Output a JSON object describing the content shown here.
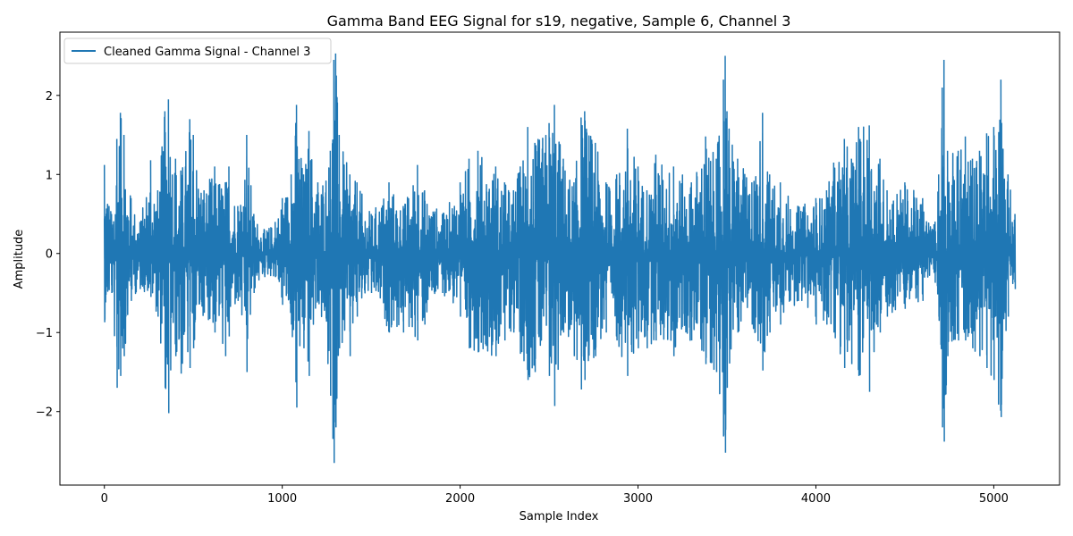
{
  "chart_data": {
    "type": "line",
    "title": "Gamma Band EEG Signal for s19, negative, Sample 6, Channel 3",
    "xlabel": "Sample Index",
    "ylabel": "Amplitude",
    "xlim": [
      -250,
      5370
    ],
    "ylim": [
      -2.93,
      2.8
    ],
    "xticks": [
      0,
      1000,
      2000,
      3000,
      4000,
      5000
    ],
    "xtick_labels": [
      "0",
      "1000",
      "2000",
      "3000",
      "4000",
      "5000"
    ],
    "yticks": [
      -2,
      -1,
      0,
      1,
      2
    ],
    "ytick_labels": [
      "−2",
      "−1",
      "0",
      "1",
      "2"
    ],
    "grid": false,
    "legend": {
      "placement": "top-left",
      "entries": [
        "Cleaned Gamma Signal - Channel 3"
      ]
    },
    "series": [
      {
        "name": "Cleaned Gamma Signal - Channel 3",
        "color": "#1f77b4",
        "length": 5120,
        "envelope": [
          [
            0,
            1.12,
            -0.87
          ],
          [
            40,
            0.5,
            -0.5
          ],
          [
            70,
            1.45,
            -1.7
          ],
          [
            90,
            1.78,
            -1.55
          ],
          [
            110,
            1.5,
            -1.3
          ],
          [
            150,
            0.7,
            -0.6
          ],
          [
            200,
            0.4,
            -0.45
          ],
          [
            260,
            1.18,
            -0.55
          ],
          [
            300,
            0.8,
            -0.8
          ],
          [
            340,
            1.8,
            -1.7
          ],
          [
            360,
            1.95,
            -2.02
          ],
          [
            400,
            1.2,
            -1.3
          ],
          [
            430,
            1.05,
            -1.52
          ],
          [
            480,
            1.7,
            -1.45
          ],
          [
            500,
            1.5,
            -1.2
          ],
          [
            560,
            0.8,
            -0.75
          ],
          [
            620,
            1.1,
            -1.0
          ],
          [
            680,
            0.9,
            -1.3
          ],
          [
            700,
            1.1,
            -1.05
          ],
          [
            750,
            0.6,
            -0.6
          ],
          [
            800,
            1.5,
            -1.5
          ],
          [
            840,
            0.5,
            -0.5
          ],
          [
            900,
            0.3,
            -0.3
          ],
          [
            960,
            0.4,
            -0.3
          ],
          [
            1000,
            0.7,
            -0.65
          ],
          [
            1050,
            1.0,
            -0.9
          ],
          [
            1080,
            1.88,
            -1.95
          ],
          [
            1120,
            1.0,
            -1.2
          ],
          [
            1150,
            1.55,
            -1.55
          ],
          [
            1200,
            0.9,
            -0.6
          ],
          [
            1270,
            1.3,
            -1.8
          ],
          [
            1290,
            2.45,
            -2.65
          ],
          [
            1300,
            2.53,
            -2.2
          ],
          [
            1320,
            1.5,
            -1.2
          ],
          [
            1380,
            1.0,
            -1.3
          ],
          [
            1420,
            0.9,
            -0.8
          ],
          [
            1500,
            0.5,
            -0.5
          ],
          [
            1600,
            0.9,
            -1.0
          ],
          [
            1680,
            0.6,
            -1.0
          ],
          [
            1760,
            1.12,
            -1.1
          ],
          [
            1800,
            0.8,
            -0.9
          ],
          [
            1900,
            0.5,
            -0.5
          ],
          [
            2000,
            0.9,
            -0.8
          ],
          [
            2050,
            1.2,
            -1.2
          ],
          [
            2100,
            1.3,
            -1.25
          ],
          [
            2200,
            1.1,
            -1.3
          ],
          [
            2250,
            0.9,
            -1.1
          ],
          [
            2300,
            0.8,
            -1.0
          ],
          [
            2380,
            1.6,
            -1.6
          ],
          [
            2420,
            1.4,
            -1.5
          ],
          [
            2500,
            1.65,
            -1.55
          ],
          [
            2530,
            1.88,
            -1.93
          ],
          [
            2580,
            1.2,
            -1.0
          ],
          [
            2640,
            0.9,
            -1.3
          ],
          [
            2680,
            1.72,
            -1.72
          ],
          [
            2700,
            1.8,
            -1.6
          ],
          [
            2760,
            1.4,
            -1.3
          ],
          [
            2820,
            0.9,
            -1.0
          ],
          [
            2880,
            1.0,
            -1.1
          ],
          [
            2940,
            1.58,
            -1.55
          ],
          [
            3000,
            1.1,
            -1.2
          ],
          [
            3050,
            0.8,
            -1.2
          ],
          [
            3100,
            1.25,
            -1.1
          ],
          [
            3200,
            1.1,
            -1.3
          ],
          [
            3300,
            0.9,
            -1.1
          ],
          [
            3380,
            1.48,
            -1.4
          ],
          [
            3440,
            1.2,
            -1.5
          ],
          [
            3480,
            2.2,
            -2.3
          ],
          [
            3490,
            2.5,
            -2.52
          ],
          [
            3500,
            1.8,
            -1.7
          ],
          [
            3560,
            1.2,
            -1.0
          ],
          [
            3640,
            0.9,
            -0.9
          ],
          [
            3700,
            1.78,
            -1.48
          ],
          [
            3740,
            1.0,
            -1.0
          ],
          [
            3800,
            0.9,
            -0.9
          ],
          [
            3900,
            0.6,
            -0.6
          ],
          [
            4000,
            0.7,
            -0.9
          ],
          [
            4060,
            0.8,
            -0.9
          ],
          [
            4100,
            1.15,
            -1.0
          ],
          [
            4160,
            1.45,
            -1.45
          ],
          [
            4200,
            1.2,
            -1.4
          ],
          [
            4240,
            1.6,
            -1.55
          ],
          [
            4300,
            1.62,
            -1.75
          ],
          [
            4360,
            1.2,
            -1.0
          ],
          [
            4400,
            0.8,
            -0.8
          ],
          [
            4500,
            0.9,
            -0.7
          ],
          [
            4600,
            0.7,
            -0.6
          ],
          [
            4660,
            0.3,
            -0.2
          ],
          [
            4690,
            1.0,
            -0.8
          ],
          [
            4710,
            2.1,
            -2.2
          ],
          [
            4720,
            2.45,
            -2.38
          ],
          [
            4740,
            1.3,
            -1.3
          ],
          [
            4800,
            1.3,
            -1.1
          ],
          [
            4840,
            1.48,
            -1.1
          ],
          [
            4880,
            1.2,
            -1.2
          ],
          [
            4920,
            1.3,
            -1.3
          ],
          [
            4960,
            1.52,
            -1.45
          ],
          [
            5000,
            1.6,
            -1.6
          ],
          [
            5040,
            2.2,
            -2.07
          ],
          [
            5080,
            1.0,
            -0.8
          ],
          [
            5119,
            0.5,
            -0.45
          ]
        ]
      }
    ]
  }
}
